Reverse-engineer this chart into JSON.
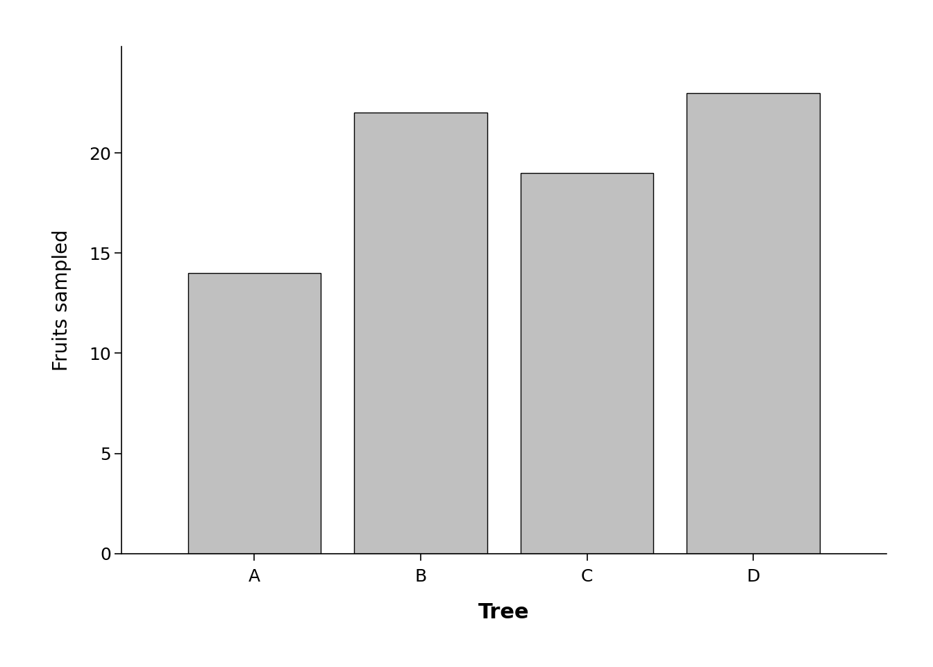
{
  "categories": [
    "A",
    "B",
    "C",
    "D"
  ],
  "values": [
    14,
    22,
    19,
    23
  ],
  "bar_color": "#c0c0c0",
  "bar_edgecolor": "#000000",
  "xlabel": "Tree",
  "ylabel": "Fruits sampled",
  "yticks": [
    0,
    5,
    10,
    15,
    20
  ],
  "ylim": [
    0,
    25.3
  ],
  "xlabel_fontsize": 22,
  "ylabel_fontsize": 20,
  "tick_fontsize": 18,
  "background_color": "#ffffff",
  "bar_width": 0.8,
  "bar_linewidth": 1.0
}
